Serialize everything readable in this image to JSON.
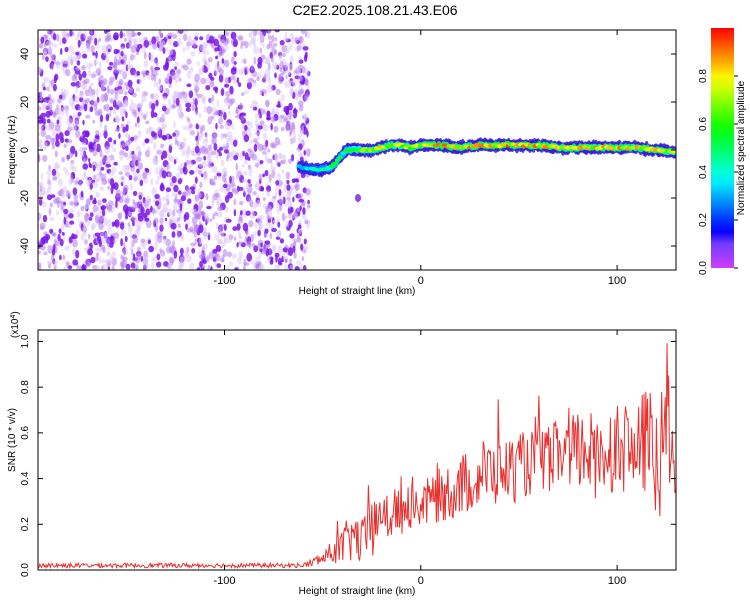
{
  "title": "C2E2.2025.108.21.43.E06",
  "chart_data": [
    {
      "type": "heatmap",
      "xlabel": "Height of straight line (km)",
      "ylabel": "Frequency (Hz)",
      "xlim": [
        -195,
        130
      ],
      "ylim": [
        -50,
        50
      ],
      "xticks": [
        -100,
        0,
        100
      ],
      "yticks": [
        -40,
        -20,
        0,
        20,
        40
      ],
      "noise_region_x": [
        -195,
        -60
      ],
      "ridge": {
        "x": [
          -62,
          -55,
          -50,
          -45,
          -42,
          -40,
          -38,
          -35,
          -30,
          -25,
          -20,
          -15,
          -10,
          -5,
          0,
          10,
          20,
          30,
          40,
          50,
          60,
          70,
          80,
          90,
          100,
          110,
          120,
          130
        ],
        "freq": [
          -7,
          -8,
          -8,
          -7,
          -4,
          -2,
          0,
          0,
          0,
          0,
          1,
          2,
          2,
          1,
          2,
          2,
          1,
          2,
          2,
          2,
          2,
          1,
          1,
          1,
          1,
          1,
          0,
          -1
        ],
        "amplitude": [
          0.35,
          0.45,
          0.5,
          0.55,
          0.6,
          0.55,
          0.6,
          0.65,
          0.75,
          0.8,
          0.85,
          0.8,
          0.75,
          0.8,
          0.85,
          0.9,
          0.85,
          0.9,
          0.95,
          0.9,
          0.95,
          0.85,
          0.9,
          0.85,
          0.9,
          0.85,
          0.9,
          0.8
        ]
      },
      "colorbar": {
        "label": "Normalized spectral amplitude",
        "ticks": [
          "0.0",
          "0.2",
          "0.4",
          "0.6",
          "0.8"
        ],
        "range": [
          0,
          1
        ]
      }
    },
    {
      "type": "line",
      "xlabel": "Height of straight line (km)",
      "ylabel": "SNR (10 * v/v)",
      "scale_label": "(x10",
      "scale_exp": "4",
      "scale_close": ")",
      "xlim": [
        -195,
        130
      ],
      "ylim": [
        0,
        1.05
      ],
      "xticks": [
        -100,
        0,
        100
      ],
      "yticks": [
        "0.0",
        "0.2",
        "0.4",
        "0.6",
        "0.8",
        "1.0"
      ],
      "series": [
        {
          "color": "#e8312f",
          "x": [
            -195,
            -180,
            -160,
            -140,
            -120,
            -100,
            -80,
            -60,
            -50,
            -45,
            -40,
            -35,
            -30,
            -25,
            -20,
            -15,
            -10,
            -5,
            0,
            10,
            20,
            30,
            40,
            50,
            60,
            70,
            80,
            90,
            100,
            110,
            115,
            120,
            125,
            130
          ],
          "y": [
            0.02,
            0.02,
            0.02,
            0.02,
            0.02,
            0.02,
            0.02,
            0.02,
            0.05,
            0.08,
            0.1,
            0.15,
            0.12,
            0.18,
            0.2,
            0.25,
            0.27,
            0.3,
            0.28,
            0.33,
            0.36,
            0.42,
            0.43,
            0.45,
            0.48,
            0.5,
            0.52,
            0.5,
            0.55,
            0.5,
            0.58,
            0.45,
            0.6,
            0.5
          ],
          "noise": [
            0.01,
            0.01,
            0.01,
            0.01,
            0.01,
            0.01,
            0.01,
            0.01,
            0.03,
            0.05,
            0.08,
            0.12,
            0.1,
            0.12,
            0.12,
            0.12,
            0.12,
            0.12,
            0.1,
            0.12,
            0.14,
            0.15,
            0.15,
            0.15,
            0.14,
            0.16,
            0.18,
            0.2,
            0.2,
            0.2,
            0.25,
            0.3,
            0.3,
            0.25
          ]
        }
      ]
    }
  ]
}
